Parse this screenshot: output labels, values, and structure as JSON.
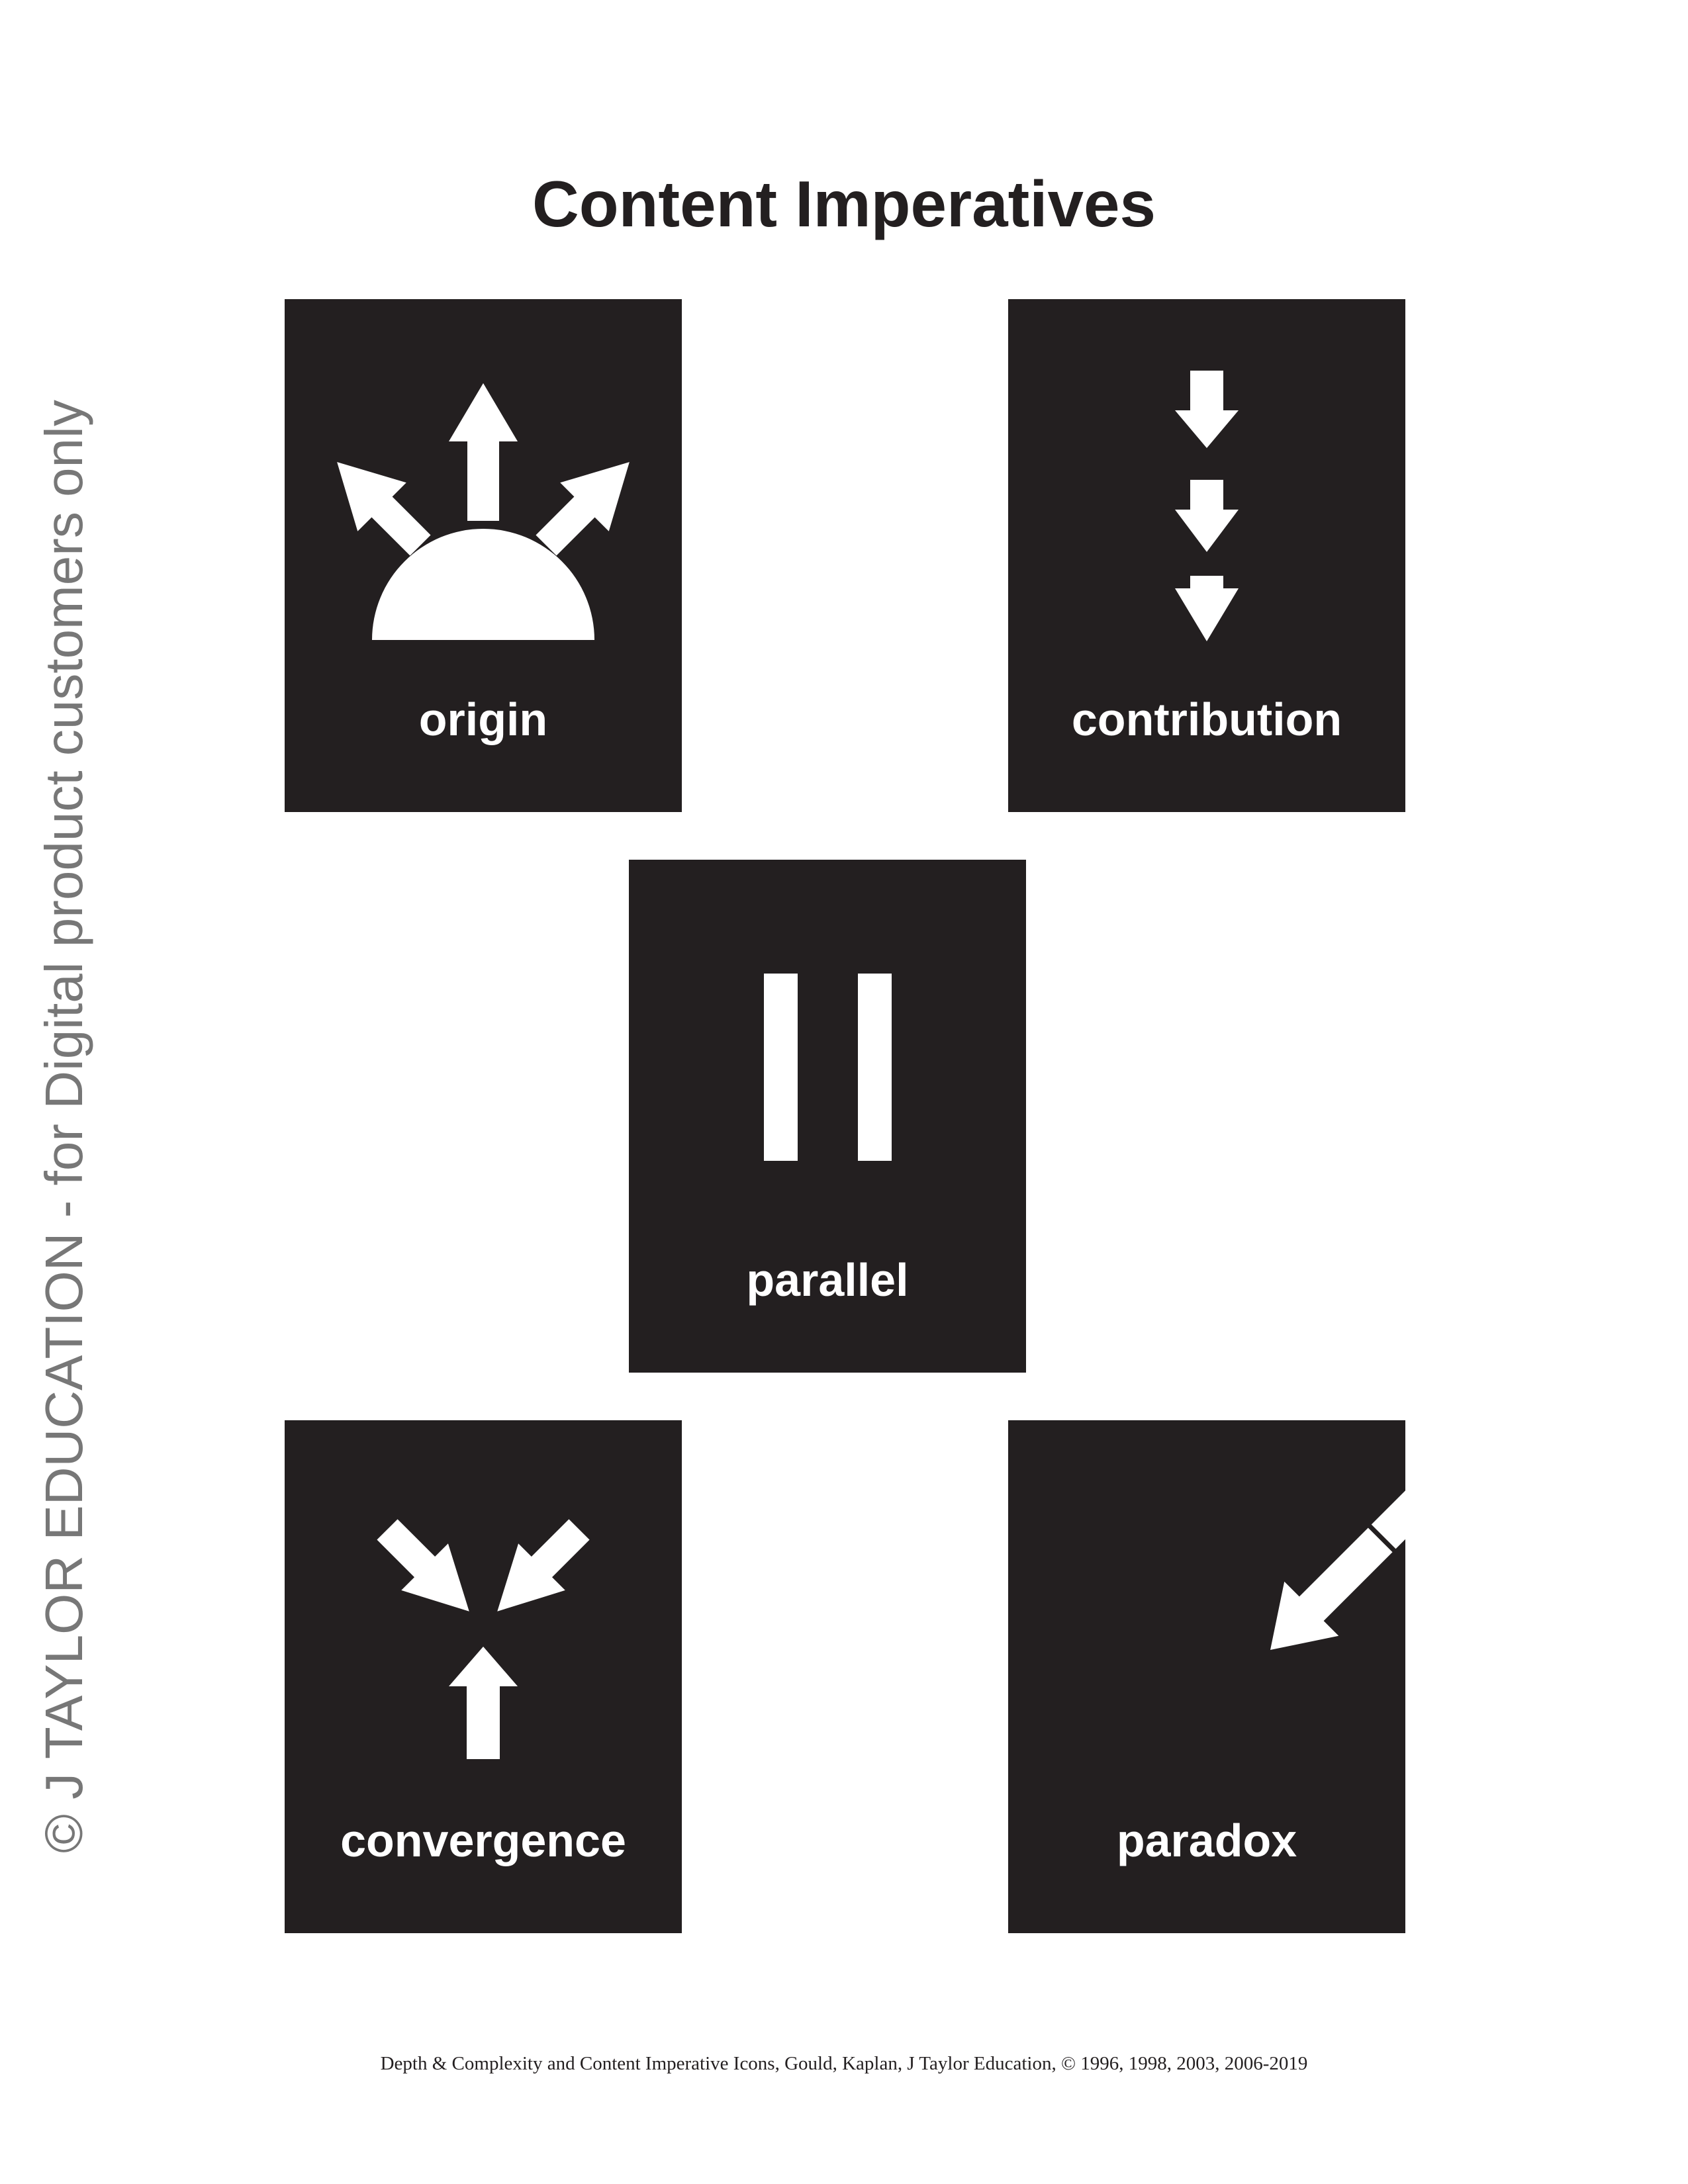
{
  "title": "Content Imperatives",
  "watermark": "© J TAYLOR EDUCATION - for Digital product customers only",
  "cards": {
    "origin": {
      "label": "origin",
      "icon": "origin-icon"
    },
    "contribution": {
      "label": "contribution",
      "icon": "contribution-icon"
    },
    "parallel": {
      "label": "parallel",
      "icon": "parallel-icon"
    },
    "convergence": {
      "label": "convergence",
      "icon": "convergence-icon"
    },
    "paradox": {
      "label": "paradox",
      "icon": "paradox-icon"
    }
  },
  "colors": {
    "card_background": "#231f20",
    "icon": "#ffffff",
    "watermark": "#777777"
  },
  "footer": "Depth & Complexity and Content Imperative Icons, Gould, Kaplan, J Taylor Education, © 1996, 1998, 2003, 2006-2019"
}
